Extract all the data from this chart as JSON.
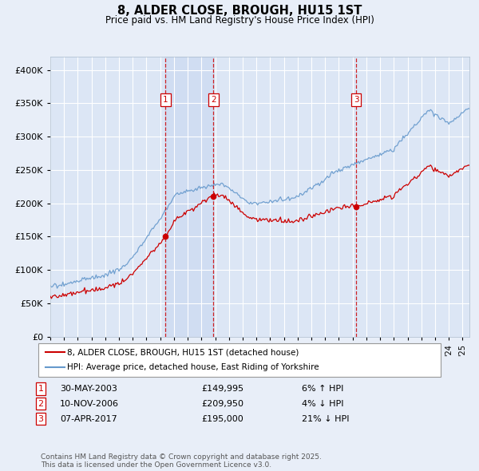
{
  "title": "8, ALDER CLOSE, BROUGH, HU15 1ST",
  "subtitle": "Price paid vs. HM Land Registry's House Price Index (HPI)",
  "legend_label_red": "8, ALDER CLOSE, BROUGH, HU15 1ST (detached house)",
  "legend_label_blue": "HPI: Average price, detached house, East Riding of Yorkshire",
  "footnote": "Contains HM Land Registry data © Crown copyright and database right 2025.\nThis data is licensed under the Open Government Licence v3.0.",
  "sale_markers": [
    {
      "num": 1,
      "date": "30-MAY-2003",
      "price": 149995,
      "pct": "6%",
      "dir": "↑",
      "year": 2003.375
    },
    {
      "num": 2,
      "date": "10-NOV-2006",
      "price": 209950,
      "pct": "4%",
      "dir": "↓",
      "year": 2006.875
    },
    {
      "num": 3,
      "date": "07-APR-2017",
      "price": 195000,
      "pct": "21%",
      "dir": "↓",
      "year": 2017.25
    }
  ],
  "ylim": [
    0,
    420000
  ],
  "yticks": [
    0,
    50000,
    100000,
    150000,
    200000,
    250000,
    300000,
    350000,
    400000
  ],
  "x_start_year": 1995,
  "x_end_year": 2025.5,
  "background_color": "#e8eef8",
  "plot_bg_color": "#dce6f5",
  "red_color": "#cc0000",
  "blue_color": "#6699cc",
  "grid_color": "#ffffff",
  "shade_color": "#c8d8f0"
}
